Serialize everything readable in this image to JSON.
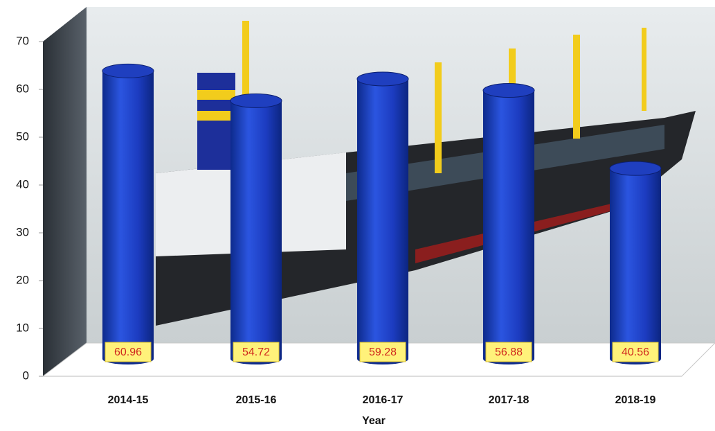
{
  "chart_data": {
    "type": "cylinder-bar",
    "x_label": "Year",
    "categories": [
      "2014-15",
      "2015-16",
      "2016-17",
      "2017-18",
      "2018-19"
    ],
    "values": [
      60.96,
      54.72,
      59.28,
      56.88,
      40.56
    ],
    "color": "#1f3fbf",
    "label_color": "#d0281e",
    "label_background": "#fff27a",
    "ylim": [
      0,
      70
    ],
    "yticks": [
      0,
      10,
      20,
      30,
      40,
      50,
      60,
      70
    ]
  }
}
